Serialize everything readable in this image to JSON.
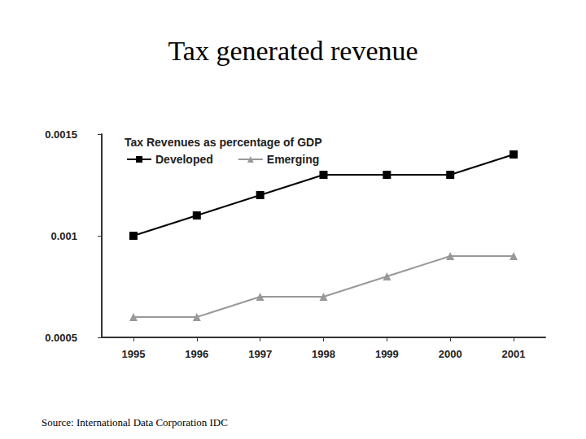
{
  "heading": "Tax generated revenue",
  "source": "Source: International Data Corporation IDC",
  "chart_data": {
    "type": "line",
    "title": "Tax Revenues as percentage of GDP",
    "categories": [
      "1995",
      "1996",
      "1997",
      "1998",
      "1999",
      "2000",
      "2001"
    ],
    "series": [
      {
        "name": "Developed",
        "color": "#000000",
        "marker": "square",
        "values": [
          0.001,
          0.0011,
          0.0012,
          0.0013,
          0.0013,
          0.0013,
          0.0014
        ]
      },
      {
        "name": "Emerging",
        "color": "#999999",
        "marker": "triangle",
        "values": [
          0.0006,
          0.0006,
          0.0007,
          0.0007,
          0.0008,
          0.0009,
          0.0009
        ]
      }
    ],
    "ylim": [
      0.0005,
      0.0015
    ],
    "yticks": [
      0.0005,
      0.001,
      0.0015
    ],
    "grid": false,
    "legend": "upper left"
  }
}
